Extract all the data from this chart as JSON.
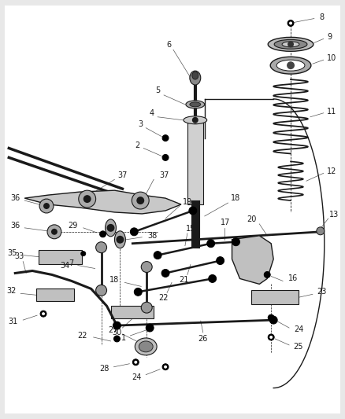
{
  "fig_width": 4.38,
  "fig_height": 5.33,
  "dpi": 100,
  "bg_color": "#e8e8e8",
  "line_color": "#1a1a1a",
  "label_color": "#1a1a1a",
  "leader_color": "#555555"
}
